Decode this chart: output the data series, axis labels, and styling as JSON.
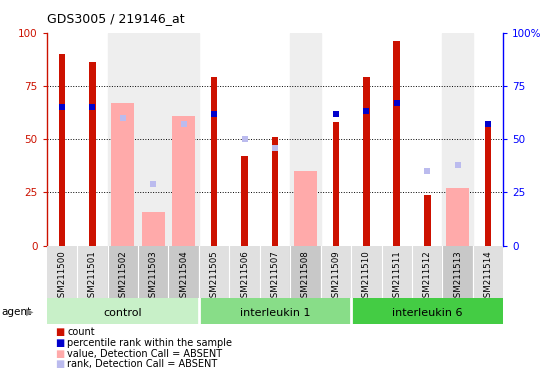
{
  "title": "GDS3005 / 219146_at",
  "samples": [
    "GSM211500",
    "GSM211501",
    "GSM211502",
    "GSM211503",
    "GSM211504",
    "GSM211505",
    "GSM211506",
    "GSM211507",
    "GSM211508",
    "GSM211509",
    "GSM211510",
    "GSM211511",
    "GSM211512",
    "GSM211513",
    "GSM211514"
  ],
  "count": [
    90,
    86,
    null,
    null,
    null,
    79,
    42,
    51,
    null,
    58,
    79,
    96,
    24,
    null,
    57
  ],
  "rank_present": [
    65,
    65,
    null,
    null,
    null,
    62,
    null,
    null,
    null,
    62,
    63,
    67,
    null,
    null,
    57
  ],
  "value_absent": [
    null,
    null,
    67,
    16,
    61,
    null,
    null,
    null,
    35,
    null,
    null,
    null,
    null,
    27,
    null
  ],
  "rank_absent": [
    null,
    null,
    60,
    29,
    57,
    null,
    50,
    46,
    null,
    null,
    null,
    null,
    35,
    38,
    null
  ],
  "group_labels": [
    "control",
    "interleukin 1",
    "interleukin 6"
  ],
  "group_ranges": [
    [
      0,
      4
    ],
    [
      5,
      9
    ],
    [
      10,
      14
    ]
  ],
  "group_colors": [
    "#c8f0c8",
    "#88dd88",
    "#44cc44"
  ],
  "bar_color_count": "#cc1100",
  "bar_color_rank_present": "#0000cc",
  "bar_color_value_absent": "#ffaaaa",
  "bar_color_rank_absent": "#bbbbee",
  "absent_bg_main": "#e8e8e8",
  "absent_bg_xtick": "#c8c8c8",
  "present_bg_xtick": "#e8e8e8",
  "legend_items": [
    {
      "color": "#cc1100",
      "label": "count"
    },
    {
      "color": "#0000cc",
      "label": "percentile rank within the sample"
    },
    {
      "color": "#ffaaaa",
      "label": "value, Detection Call = ABSENT"
    },
    {
      "color": "#bbbbee",
      "label": "rank, Detection Call = ABSENT"
    }
  ]
}
